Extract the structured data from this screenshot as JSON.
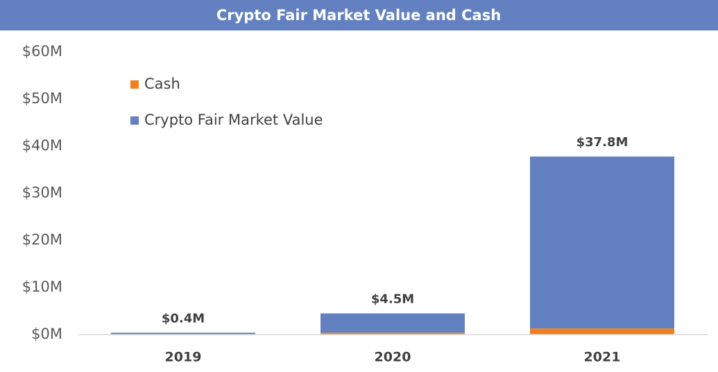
{
  "chart_data": {
    "type": "stacked-bar",
    "title": "Crypto Fair Market Value and Cash",
    "categories": [
      "2019",
      "2020",
      "2021"
    ],
    "series": [
      {
        "name": "Cash",
        "color": "#f07f1f",
        "values": [
          0.02,
          0.4,
          1.3
        ]
      },
      {
        "name": "Crypto Fair Market Value",
        "color": "#6381c1",
        "values": [
          0.38,
          4.1,
          36.5
        ]
      }
    ],
    "totals": {
      "values": [
        0.4,
        4.5,
        37.8
      ],
      "value_labels": [
        "$0.4M",
        "$4.5M",
        "$37.8M"
      ]
    },
    "ylim": [
      0,
      60
    ],
    "yticks": [
      {
        "value": 0,
        "label": "$0M"
      },
      {
        "value": 10,
        "label": "$10M"
      },
      {
        "value": 20,
        "label": "$20M"
      },
      {
        "value": 30,
        "label": "$30M"
      },
      {
        "value": 40,
        "label": "$40M"
      },
      {
        "value": 50,
        "label": "$50M"
      },
      {
        "value": 60,
        "label": "$60M"
      }
    ],
    "grid": false,
    "legend": "top-left"
  }
}
